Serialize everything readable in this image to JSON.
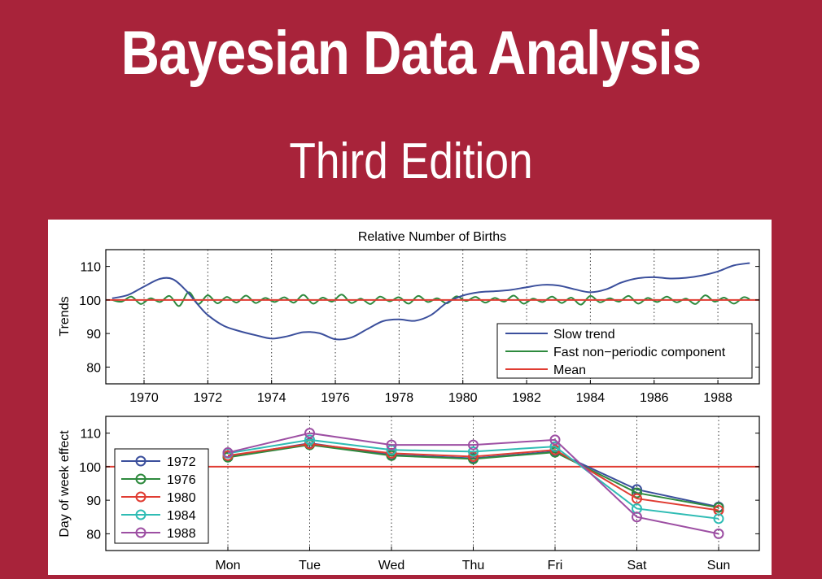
{
  "cover": {
    "title": "Bayesian Data Analysis",
    "subtitle": "Third Edition"
  },
  "colors": {
    "background": "#a8233a",
    "panel": "#ffffff"
  },
  "chart_data": [
    {
      "type": "line",
      "title": "Relative Number of Births",
      "ylabel": "Trends",
      "xlabel": "",
      "xlim": [
        1968.8,
        1989.3
      ],
      "ylim": [
        75,
        115
      ],
      "xticks": [
        1970,
        1972,
        1974,
        1976,
        1978,
        1980,
        1982,
        1984,
        1986,
        1988
      ],
      "yticks": [
        80,
        90,
        100,
        110
      ],
      "grid": "vertical dotted",
      "legend": "bottom-right",
      "series": [
        {
          "name": "Slow trend",
          "color": "#3b4f9c",
          "x": [
            1969,
            1969.5,
            1970,
            1970.5,
            1970.9,
            1971.3,
            1971.7,
            1972,
            1972.5,
            1973,
            1973.5,
            1974,
            1974.5,
            1975,
            1975.5,
            1976,
            1976.5,
            1977,
            1977.5,
            1978,
            1978.5,
            1979,
            1979.5,
            1980,
            1980.5,
            1981,
            1981.5,
            1982,
            1982.5,
            1983,
            1983.5,
            1984,
            1984.5,
            1985,
            1985.5,
            1986,
            1986.5,
            1987,
            1987.5,
            1988,
            1988.5,
            1989
          ],
          "y": [
            100.5,
            101.5,
            104,
            106.3,
            106.2,
            103,
            98.5,
            95.5,
            92.3,
            90.7,
            89.5,
            88.5,
            89.2,
            90.4,
            90.1,
            88.3,
            88.8,
            91.3,
            93.7,
            94.2,
            93.8,
            95.5,
            99.2,
            101.3,
            102.3,
            102.6,
            103,
            103.8,
            104.5,
            104.3,
            103.2,
            102.3,
            103.2,
            105.3,
            106.5,
            106.8,
            106.4,
            106.6,
            107.3,
            108.5,
            110.3,
            111
          ]
        },
        {
          "name": "Fast non−periodic component",
          "color": "#2e8a3e",
          "x": [
            1969,
            1969.3,
            1969.6,
            1969.9,
            1970.2,
            1970.5,
            1970.8,
            1971.1,
            1971.4,
            1971.7,
            1972,
            1972.3,
            1972.6,
            1972.9,
            1973.2,
            1973.5,
            1973.8,
            1974.1,
            1974.4,
            1974.7,
            1975,
            1975.3,
            1975.6,
            1975.9,
            1976.2,
            1976.5,
            1976.8,
            1977.1,
            1977.4,
            1977.7,
            1978,
            1978.3,
            1978.6,
            1978.9,
            1979.2,
            1979.5,
            1979.8,
            1980.1,
            1980.4,
            1980.7,
            1981,
            1981.3,
            1981.6,
            1981.9,
            1982.2,
            1982.5,
            1982.8,
            1983.1,
            1983.4,
            1983.7,
            1984,
            1984.3,
            1984.6,
            1984.9,
            1985.2,
            1985.5,
            1985.8,
            1986.1,
            1986.4,
            1986.7,
            1987,
            1987.3,
            1987.6,
            1987.9,
            1988.2,
            1988.5,
            1988.8,
            1989
          ],
          "y": [
            100,
            99.5,
            101,
            98.8,
            100.5,
            99.4,
            101.2,
            98.2,
            102.3,
            98.8,
            101.4,
            99,
            100.9,
            99.2,
            101.3,
            99.1,
            100.6,
            99.4,
            100.8,
            99.2,
            101.5,
            98.9,
            100.7,
            99.5,
            101.6,
            99.1,
            100.4,
            98.8,
            101,
            99.6,
            100.8,
            98.9,
            101.2,
            99.4,
            100.5,
            99,
            101.1,
            99.7,
            100.9,
            99.2,
            100.6,
            99.5,
            101.3,
            98.9,
            100.4,
            99.4,
            101,
            99.1,
            100.7,
            98.6,
            101.2,
            99.3,
            100.5,
            99.5,
            101.2,
            98.9,
            100.6,
            99.4,
            101,
            99.3,
            100.4,
            98.8,
            101.4,
            99.5,
            100.7,
            98.9,
            100.8,
            100.2
          ]
        },
        {
          "name": "Mean",
          "color": "#e03c32",
          "x": [
            1968.8,
            1989.3
          ],
          "y": [
            100,
            100
          ]
        }
      ]
    },
    {
      "type": "line",
      "title": "",
      "ylabel": "Day of week effect",
      "xlabel": "",
      "categories": [
        "Mon",
        "Tue",
        "Wed",
        "Thu",
        "Fri",
        "Sat",
        "Sun"
      ],
      "ylim": [
        75,
        115
      ],
      "yticks": [
        80,
        90,
        100,
        110
      ],
      "grid": "vertical dotted",
      "legend": "left",
      "mean_line": 100,
      "mean_color": "#e03c32",
      "series": [
        {
          "name": "1972",
          "color": "#3b4f9c",
          "values": [
            103,
            107,
            103.5,
            102.5,
            104.5,
            93.2,
            88
          ]
        },
        {
          "name": "1976",
          "color": "#2e8a3e",
          "values": [
            102.8,
            106.5,
            103.3,
            102.3,
            104.3,
            92.2,
            87.8
          ]
        },
        {
          "name": "1980",
          "color": "#e03c32",
          "values": [
            103.3,
            106.8,
            104,
            103,
            105,
            90.5,
            87
          ]
        },
        {
          "name": "1984",
          "color": "#2fbcb4",
          "values": [
            104,
            108,
            105,
            104.5,
            106,
            87.5,
            84.5
          ]
        },
        {
          "name": "1988",
          "color": "#9d4fa3",
          "values": [
            104.2,
            110,
            106.5,
            106.5,
            108,
            85,
            80
          ]
        }
      ]
    }
  ]
}
